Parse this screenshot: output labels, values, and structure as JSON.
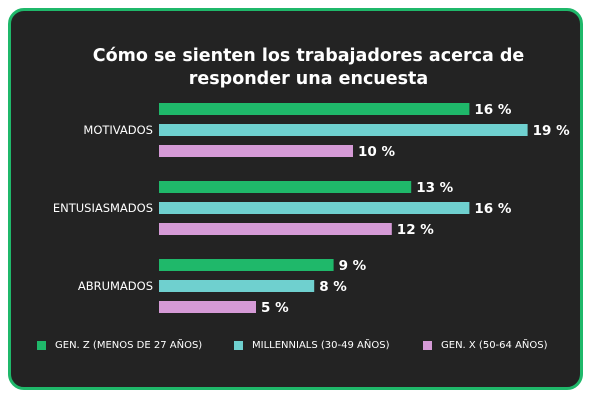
{
  "chart_data": {
    "type": "bar",
    "orientation": "horizontal",
    "title": "Cómo se sienten los trabajadores acerca de responder una encuesta",
    "title_lines": [
      "Cómo se sienten los trabajadores acerca de",
      "responder una encuesta"
    ],
    "categories": [
      "MOTIVADOS",
      "ENTUSIASMADOS",
      "ABRUMADOS"
    ],
    "series": [
      {
        "name": "GEN. Z (MENOS DE 27 AÑOS)",
        "color": "#1fb86a",
        "values": [
          16,
          13,
          9
        ],
        "labels": [
          "16 %",
          "13 %",
          "9 %"
        ]
      },
      {
        "name": "MILLENNIALS (30-49 AÑOS)",
        "color": "#6fd0cf",
        "values": [
          19,
          16,
          8
        ],
        "labels": [
          "19 %",
          "16 %",
          "8 %"
        ]
      },
      {
        "name": "GEN. X (50-64 AÑOS)",
        "color": "#d59ad6",
        "values": [
          10,
          12,
          5
        ],
        "labels": [
          "10 %",
          "12 %",
          "5 %"
        ]
      }
    ],
    "value_unit": "%",
    "grid": false,
    "legend_position": "bottom",
    "card_border_color": "#1fb86a",
    "background_color": "#232323"
  }
}
